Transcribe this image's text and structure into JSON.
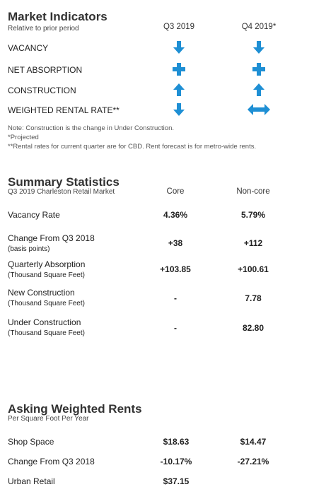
{
  "market_indicators": {
    "title": "Market Indicators",
    "subtitle": "Relative to prior period",
    "columns": [
      "Q3 2019",
      "Q4 2019*"
    ],
    "rows": [
      "VACANCY",
      "NET ABSORPTION",
      "CONSTRUCTION",
      "WEIGHTED RENTAL RATE**"
    ],
    "notes": [
      "Note: Construction is the change in Under Construction.",
      "*Projected",
      "**Rental rates for current quarter are for CBD. Rent forecast is for metro-wide rents."
    ]
  },
  "summary_statistics": {
    "title": "Summary Statistics",
    "subtitle": "Q3 2019 Charleston Retail Market",
    "columns": [
      "Core",
      "Non-core"
    ],
    "rows": [
      {
        "label": "Vacancy Rate",
        "values": [
          "4.36%",
          "5.79%"
        ]
      },
      {
        "label": "Change From Q3 2018",
        "sublabel": "(basis points)",
        "values": [
          "+38",
          "+112"
        ]
      },
      {
        "label": "Quarterly Absorption",
        "sublabel": "(Thousand Square Feet)",
        "values": [
          "+103.85",
          "+100.61"
        ]
      },
      {
        "label": "New Construction",
        "sublabel": "(Thousand Square Feet)",
        "values": [
          "-",
          "7.78"
        ]
      },
      {
        "label": "Under Construction",
        "sublabel": "(Thousand Square Feet)",
        "values": [
          "-",
          "82.80"
        ]
      }
    ]
  },
  "asking_weighted_rents": {
    "title": "Asking Weighted Rents",
    "subtitle": "Per Square Foot Per Year",
    "rows": [
      {
        "label": "Shop Space",
        "values": [
          "$18.63",
          "$14.47"
        ]
      },
      {
        "label": "Change From Q3 2018",
        "values": [
          "-10.17%",
          "-27.21%"
        ]
      },
      {
        "label": "Urban Retail",
        "values": [
          "$37.15"
        ]
      }
    ]
  }
}
